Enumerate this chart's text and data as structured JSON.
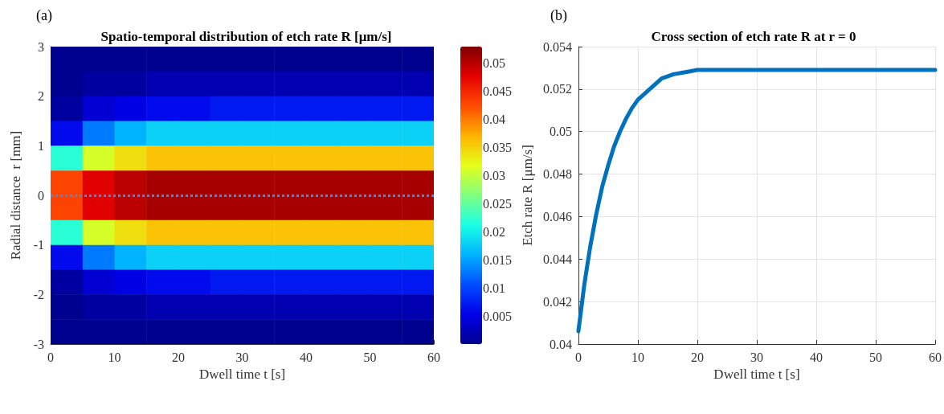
{
  "chart_data": [
    {
      "type": "heatmap",
      "title": "Spatio-temporal distribution of etch rate R [μm/s]",
      "xlabel": "Dwell time t [s]",
      "ylabel": "Radial distance  r [mm]",
      "annotations": [
        "(a)"
      ],
      "x": [
        2.5,
        7.5,
        12.5,
        17.5,
        22.5,
        27.5,
        32.5,
        37.5,
        42.5,
        47.5,
        52.5,
        57.5
      ],
      "y": [
        2.75,
        2.25,
        1.75,
        1.25,
        0.75,
        0.25,
        -0.25,
        -0.75,
        -1.25,
        -1.75,
        -2.25,
        -2.75
      ],
      "cells": [
        [
          0.0,
          0.0,
          0.0,
          0.0,
          0.0,
          0.0,
          0.0,
          0.0,
          0.0,
          0.0,
          0.0,
          0.0
        ],
        [
          0.0,
          0.001,
          0.001,
          0.002,
          0.002,
          0.002,
          0.002,
          0.002,
          0.002,
          0.002,
          0.002,
          0.002
        ],
        [
          0.001,
          0.004,
          0.005,
          0.006,
          0.006,
          0.007,
          0.007,
          0.007,
          0.007,
          0.007,
          0.007,
          0.007
        ],
        [
          0.006,
          0.013,
          0.016,
          0.018,
          0.018,
          0.018,
          0.018,
          0.018,
          0.018,
          0.018,
          0.018,
          0.018
        ],
        [
          0.022,
          0.031,
          0.034,
          0.036,
          0.036,
          0.036,
          0.036,
          0.036,
          0.036,
          0.036,
          0.036,
          0.036
        ],
        [
          0.043,
          0.048,
          0.05,
          0.051,
          0.051,
          0.051,
          0.051,
          0.051,
          0.051,
          0.051,
          0.051,
          0.051
        ],
        [
          0.043,
          0.048,
          0.05,
          0.051,
          0.051,
          0.051,
          0.051,
          0.051,
          0.051,
          0.051,
          0.051,
          0.051
        ],
        [
          0.022,
          0.031,
          0.034,
          0.036,
          0.036,
          0.036,
          0.036,
          0.036,
          0.036,
          0.036,
          0.036,
          0.036
        ],
        [
          0.006,
          0.013,
          0.016,
          0.018,
          0.018,
          0.018,
          0.018,
          0.018,
          0.018,
          0.018,
          0.018,
          0.018
        ],
        [
          0.001,
          0.004,
          0.005,
          0.006,
          0.006,
          0.007,
          0.007,
          0.007,
          0.007,
          0.007,
          0.007,
          0.007
        ],
        [
          0.0,
          0.001,
          0.001,
          0.002,
          0.002,
          0.002,
          0.002,
          0.002,
          0.002,
          0.002,
          0.002,
          0.002
        ],
        [
          0.0,
          0.0,
          0.0,
          0.0,
          0.0,
          0.0,
          0.0,
          0.0,
          0.0,
          0.0,
          0.0,
          0.0
        ]
      ],
      "xlim": [
        0,
        60
      ],
      "xticks": [
        0,
        10,
        20,
        30,
        40,
        50,
        60
      ],
      "ylim": [
        -3,
        3
      ],
      "yticks": [
        -3,
        -2,
        -1,
        0,
        1,
        2,
        3
      ],
      "clim": [
        0,
        0.053
      ],
      "cticks": [
        0.005,
        0.01,
        0.015,
        0.02,
        0.025,
        0.03,
        0.035,
        0.04,
        0.045,
        0.05
      ],
      "ref_lines": [
        {
          "axis": "y",
          "value": 0,
          "color": "#6a7fb8",
          "line_style": "dotted"
        }
      ]
    },
    {
      "type": "line",
      "title": "Cross section of etch rate R at r = 0",
      "xlabel": "Dwell time t [s]",
      "ylabel": "Etch rate R [μm/s]",
      "annotations": [
        "(b)"
      ],
      "x": [
        0,
        1,
        2,
        3,
        4,
        5,
        6,
        7,
        8,
        9,
        10,
        12,
        14,
        16,
        18,
        20,
        25,
        30,
        40,
        50,
        60
      ],
      "series": [
        {
          "color": "#0072bd",
          "values": [
            0.0406,
            0.0428,
            0.0446,
            0.0461,
            0.0474,
            0.0484,
            0.0493,
            0.05,
            0.0506,
            0.0511,
            0.0515,
            0.052,
            0.0525,
            0.0527,
            0.0528,
            0.0529,
            0.0529,
            0.0529,
            0.0529,
            0.0529,
            0.0529
          ]
        }
      ],
      "xlim": [
        0,
        60
      ],
      "xticks": [
        0,
        10,
        20,
        30,
        40,
        50,
        60
      ],
      "ylim": [
        0.04,
        0.054
      ],
      "yticks": [
        0.04,
        0.042,
        0.044,
        0.046,
        0.048,
        0.05,
        0.052,
        0.054
      ],
      "grid": true
    }
  ]
}
